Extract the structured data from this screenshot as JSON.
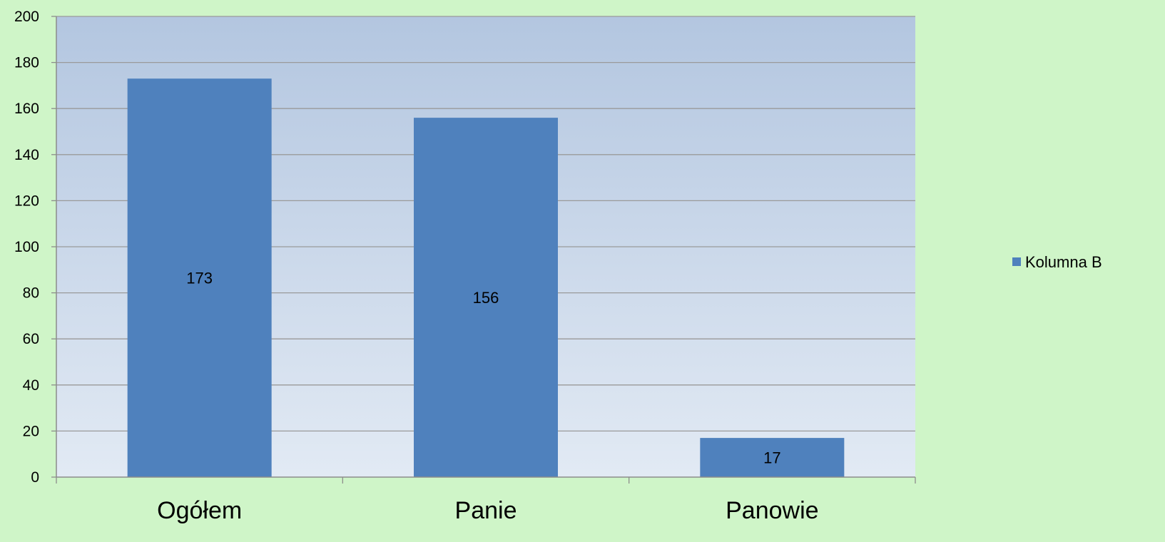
{
  "chart_data": {
    "type": "bar",
    "categories": [
      "Ogółem",
      "Panie",
      "Panowie"
    ],
    "series": [
      {
        "name": "Kolumna B",
        "values": [
          173,
          156,
          17
        ]
      }
    ],
    "data_labels": [
      "173",
      "156",
      "17"
    ],
    "ylim": [
      0,
      200
    ],
    "yticks": [
      0,
      20,
      40,
      60,
      80,
      100,
      120,
      140,
      160,
      180,
      200
    ],
    "grid": true,
    "legend_position": "right",
    "colors": {
      "bar": "#4f81bd",
      "background": "#cff5c8",
      "plot_top": "#b3c6e0",
      "plot_bottom": "#e2eaf4",
      "grid": "#9a9a9a"
    }
  }
}
